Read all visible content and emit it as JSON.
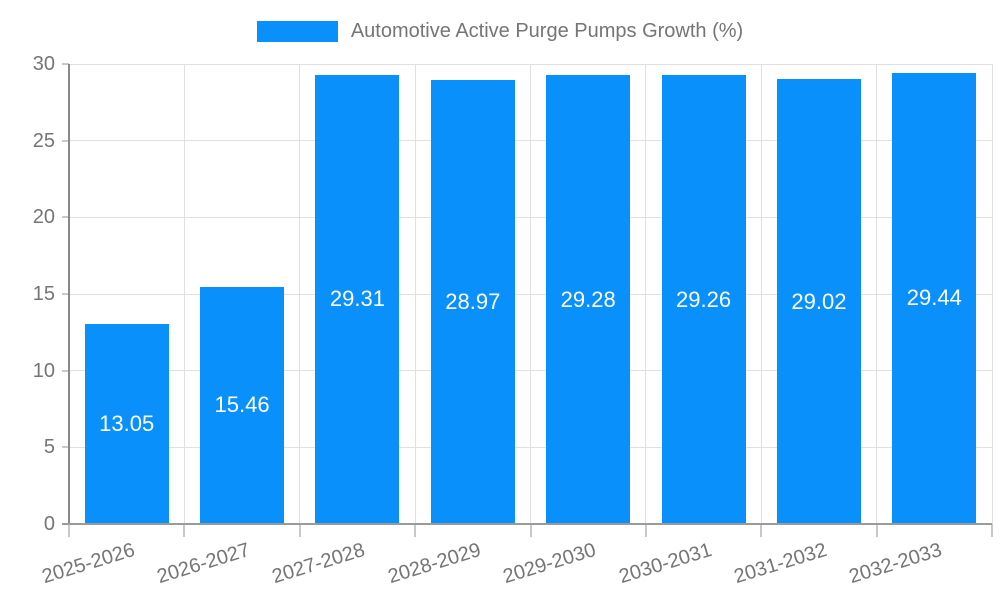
{
  "legend": {
    "label": "Automotive Active Purge Pumps Growth (%)"
  },
  "chart_data": {
    "type": "bar",
    "title": "Automotive Active Purge Pumps Growth (%)",
    "categories": [
      "2025-2026",
      "2026-2027",
      "2027-2028",
      "2028-2029",
      "2029-2030",
      "2030-2031",
      "2031-2032",
      "2032-2033"
    ],
    "values": [
      13.05,
      15.46,
      29.31,
      28.97,
      29.28,
      29.26,
      29.02,
      29.44
    ],
    "value_labels": [
      "13.05",
      "15.46",
      "29.31",
      "28.97",
      "29.28",
      "29.26",
      "29.02",
      "29.44"
    ],
    "xlabel": "",
    "ylabel": "",
    "ylim": [
      0,
      30
    ],
    "yticks": [
      0,
      5,
      10,
      15,
      20,
      25,
      30
    ],
    "grid": true,
    "legend_position": "top-center",
    "x_label_rotation_deg": -17,
    "colors": {
      "bar": "#0990fb",
      "bar_label": "#ffffff",
      "axis_text": "#757575",
      "grid_line": "#e0e0e0",
      "tick": "#c9c9c9",
      "y_axis_line": "#888888",
      "x_axis_line": "#9a9a9a",
      "background": "#ffffff"
    }
  }
}
